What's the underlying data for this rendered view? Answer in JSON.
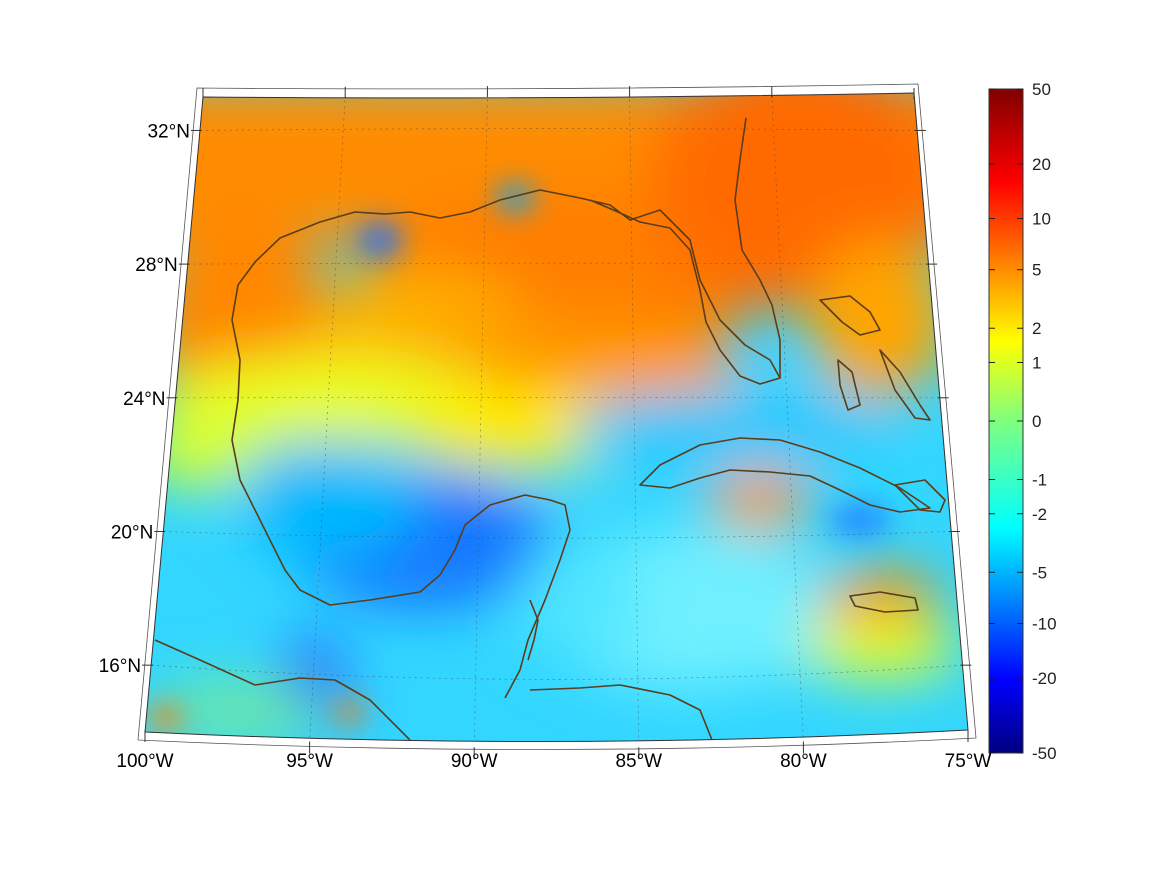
{
  "map": {
    "projection": "conic",
    "lon_range": [
      -100,
      -75
    ],
    "lat_range": [
      14,
      33
    ],
    "lat_labels": [
      {
        "lat": 32,
        "text": "32°N"
      },
      {
        "lat": 28,
        "text": "28°N"
      },
      {
        "lat": 24,
        "text": "24°N"
      },
      {
        "lat": 20,
        "text": "20°N"
      },
      {
        "lat": 16,
        "text": "16°N"
      }
    ],
    "lon_labels": [
      {
        "lon": -100,
        "text": "100°W"
      },
      {
        "lon": -95,
        "text": "95°W"
      },
      {
        "lon": -90,
        "text": "90°W"
      },
      {
        "lon": -85,
        "text": "85°W"
      },
      {
        "lon": -80,
        "text": "80°W"
      },
      {
        "lon": -75,
        "text": "75°W"
      }
    ],
    "gridlines": true,
    "coastline_color": "#5a3d1a"
  },
  "colorbar": {
    "position": "right",
    "colormap": "jet",
    "scale": "symmetric-log",
    "ticks": [
      {
        "value": 50,
        "text": "50"
      },
      {
        "value": 20,
        "text": "20"
      },
      {
        "value": 10,
        "text": "10"
      },
      {
        "value": 5,
        "text": "5"
      },
      {
        "value": 2,
        "text": "2"
      },
      {
        "value": 1,
        "text": "1"
      },
      {
        "value": 0,
        "text": "0"
      },
      {
        "value": -1,
        "text": "-1"
      },
      {
        "value": -2,
        "text": "-2"
      },
      {
        "value": -5,
        "text": "-5"
      },
      {
        "value": -10,
        "text": "-10"
      },
      {
        "value": -20,
        "text": "-20"
      },
      {
        "value": -50,
        "text": "-50"
      }
    ]
  }
}
